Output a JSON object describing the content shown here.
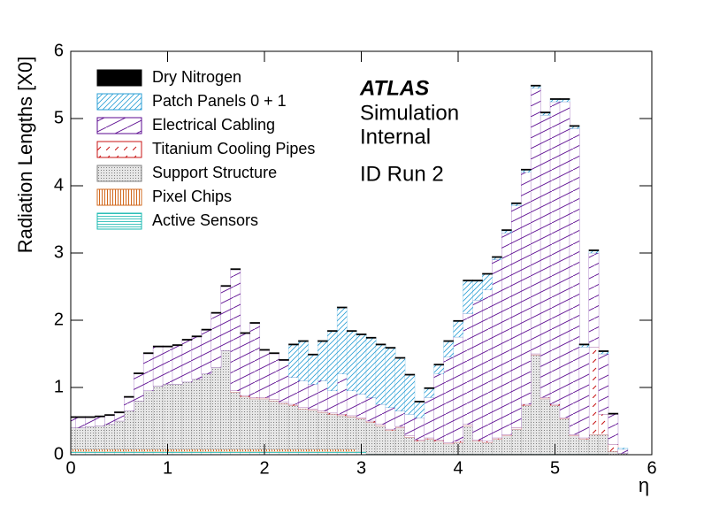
{
  "chart_data": {
    "type": "stacked-step-area",
    "y_label": "Radiation Lengths [X0]",
    "x_label": "η",
    "annotations": [
      "ATLAS",
      "Simulation",
      "Internal",
      "ID Run 2"
    ],
    "legend": "top left",
    "xlim": [
      0,
      6
    ],
    "ylim": [
      0,
      6
    ],
    "xticks": [
      0,
      1,
      2,
      3,
      4,
      5,
      6
    ],
    "yticks": [
      0,
      1,
      2,
      3,
      4,
      5,
      6
    ],
    "x": [
      0,
      0.1,
      0.2,
      0.3,
      0.4,
      0.5,
      0.6,
      0.7,
      0.8,
      0.9,
      1,
      1.1,
      1.2,
      1.3,
      1.4,
      1.5,
      1.6,
      1.7,
      1.8,
      1.9,
      2,
      2.1,
      2.2,
      2.3,
      2.4,
      2.5,
      2.6,
      2.7,
      2.8,
      2.9,
      3,
      3.1,
      3.2,
      3.3,
      3.4,
      3.5,
      3.6,
      3.7,
      3.8,
      3.9,
      4,
      4.1,
      4.2,
      4.3,
      4.4,
      4.5,
      4.6,
      4.7,
      4.8,
      4.9,
      5,
      5.1,
      5.2,
      5.3,
      5.4,
      5.5,
      5.6,
      5.7,
      5.8,
      5.9,
      6
    ],
    "series": [
      {
        "name": "Dry Nitrogen",
        "color": "#000000",
        "hatch": "solid",
        "values": [
          0.02,
          0.02,
          0.02,
          0.02,
          0.02,
          0.02,
          0.02,
          0.02,
          0.02,
          0.02,
          0.02,
          0.02,
          0.02,
          0.02,
          0.02,
          0.02,
          0.02,
          0.02,
          0.02,
          0.02,
          0.02,
          0.02,
          0.02,
          0.02,
          0.02,
          0.02,
          0.02,
          0.02,
          0.02,
          0.02,
          0.02,
          0.02,
          0.02,
          0.02,
          0.02,
          0.02,
          0.02,
          0.02,
          0.02,
          0.02,
          0.02,
          0.02,
          0.02,
          0.02,
          0.02,
          0.02,
          0.02,
          0.02,
          0.02,
          0.02,
          0.02,
          0.02,
          0.02,
          0.02,
          0.02,
          0.02,
          0.02,
          0,
          0,
          0,
          0
        ]
      },
      {
        "name": "Patch Panels 0 + 1",
        "color": "#2a9fd6",
        "hatch": "diag-fine",
        "values": [
          0,
          0,
          0,
          0,
          0,
          0,
          0,
          0,
          0,
          0,
          0,
          0,
          0,
          0,
          0,
          0,
          0,
          0,
          0,
          0,
          0,
          0,
          0,
          0.48,
          0.58,
          0.43,
          0.58,
          0.88,
          0.98,
          0.88,
          0.88,
          0.88,
          0.88,
          0.88,
          0.78,
          0.58,
          0.23,
          0.13,
          0.13,
          0.23,
          0.23,
          0.48,
          0.28,
          0.23,
          0.03,
          0.03,
          0.03,
          0.03,
          0.03,
          0.03,
          0.03,
          0.03,
          0.03,
          0.03,
          0.03,
          0.03,
          0,
          0.02,
          0,
          0,
          0
        ]
      },
      {
        "name": "Electrical Cabling",
        "color": "#5b0a91",
        "hatch": "diag",
        "values": [
          0.15,
          0.15,
          0.13,
          0.13,
          0.13,
          0.12,
          0.2,
          0.4,
          0.55,
          0.58,
          0.55,
          0.57,
          0.62,
          0.63,
          0.65,
          0.8,
          0.95,
          1.8,
          0.92,
          1.1,
          0.7,
          0.68,
          0.62,
          0.4,
          0.4,
          0.37,
          0.45,
          0.33,
          0.6,
          0.37,
          0.35,
          0.35,
          0.3,
          0.32,
          0.23,
          0.32,
          0.33,
          0.6,
          0.98,
          1.27,
          1.55,
          1.65,
          2.08,
          2.25,
          2.65,
          3.0,
          3.3,
          3.45,
          3.95,
          4.2,
          4.5,
          4.7,
          4.55,
          1.35,
          1.4,
          0.9,
          0.45,
          0.06,
          0,
          0,
          0
        ]
      },
      {
        "name": "Titanium Cooling Pipes",
        "color": "#c81414",
        "hatch": "dash-diag",
        "values": [
          0,
          0,
          0,
          0,
          0,
          0,
          0,
          0,
          0,
          0,
          0,
          0,
          0,
          0,
          0,
          0,
          0,
          0.02,
          0.02,
          0.02,
          0.02,
          0.02,
          0.02,
          0.02,
          0.02,
          0.02,
          0.02,
          0.02,
          0.02,
          0.02,
          0.02,
          0.02,
          0.02,
          0.02,
          0.02,
          0.02,
          0.02,
          0.02,
          0.02,
          0.02,
          0.02,
          0.02,
          0.02,
          0.02,
          0.02,
          0.02,
          0.02,
          0.02,
          0.02,
          0.02,
          0.02,
          0.02,
          0.02,
          0.02,
          1.3,
          0.3,
          0.1,
          0,
          0,
          0,
          0
        ]
      },
      {
        "name": "Support Structure",
        "color": "#808080",
        "hatch": "dots",
        "values": [
          0.32,
          0.32,
          0.34,
          0.35,
          0.37,
          0.42,
          0.57,
          0.72,
          0.87,
          0.94,
          0.97,
          0.97,
          1.0,
          1.04,
          1.12,
          1.22,
          1.47,
          0.85,
          0.78,
          0.75,
          0.75,
          0.72,
          0.68,
          0.65,
          0.6,
          0.58,
          0.55,
          0.52,
          0.5,
          0.48,
          0.48,
          0.47,
          0.42,
          0.35,
          0.39,
          0.25,
          0.19,
          0.22,
          0.19,
          0.15,
          0.17,
          0.42,
          0.19,
          0.17,
          0.22,
          0.27,
          0.37,
          0.72,
          1.47,
          0.82,
          0.72,
          0.52,
          0.27,
          0.22,
          0.29,
          0.29,
          0.05,
          0.02,
          0,
          0,
          0
        ]
      },
      {
        "name": "Pixel Chips",
        "color": "#d2691e",
        "hatch": "vertical",
        "values": [
          0.03,
          0.03,
          0.03,
          0.03,
          0.03,
          0.03,
          0.03,
          0.03,
          0.03,
          0.03,
          0.03,
          0.03,
          0.03,
          0.03,
          0.03,
          0.03,
          0.03,
          0.03,
          0.03,
          0.03,
          0.03,
          0.03,
          0.03,
          0.03,
          0.03,
          0.03,
          0.03,
          0.03,
          0.03,
          0.03,
          0,
          0,
          0,
          0,
          0,
          0,
          0,
          0,
          0,
          0,
          0,
          0,
          0,
          0,
          0,
          0,
          0,
          0,
          0,
          0,
          0,
          0,
          0,
          0,
          0,
          0,
          0,
          0,
          0,
          0,
          0
        ]
      },
      {
        "name": "Active Sensors",
        "color": "#17b8b0",
        "hatch": "horizontal",
        "values": [
          0.05,
          0.05,
          0.05,
          0.05,
          0.05,
          0.05,
          0.05,
          0.05,
          0.05,
          0.05,
          0.05,
          0.05,
          0.05,
          0.05,
          0.05,
          0.05,
          0.05,
          0.05,
          0.05,
          0.05,
          0.05,
          0.05,
          0.05,
          0.05,
          0.05,
          0.05,
          0.05,
          0.05,
          0.05,
          0.05,
          0.05,
          0.01,
          0.01,
          0.01,
          0.01,
          0.01,
          0.01,
          0.01,
          0.01,
          0.01,
          0.01,
          0.01,
          0.01,
          0.01,
          0.01,
          0.01,
          0.01,
          0.01,
          0.01,
          0.01,
          0.01,
          0.01,
          0.01,
          0.01,
          0.01,
          0.01,
          0,
          0,
          0,
          0,
          0
        ]
      }
    ]
  }
}
